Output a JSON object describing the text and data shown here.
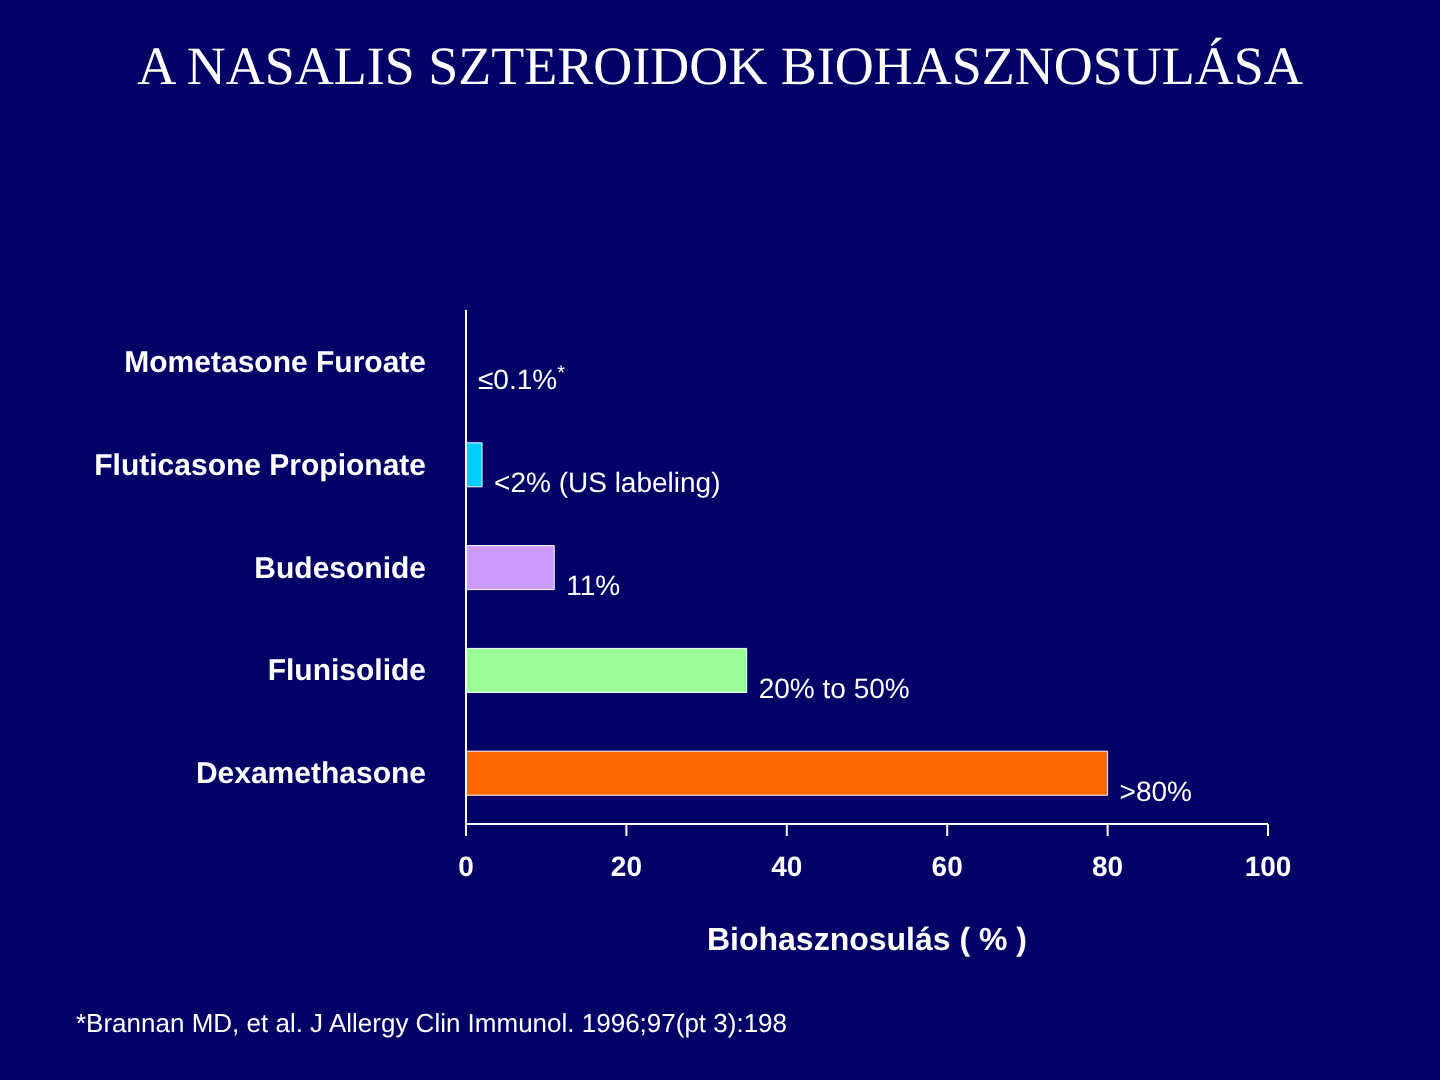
{
  "chart_data": {
    "type": "bar",
    "orientation": "horizontal",
    "title": "A NASALIS SZTEROIDOK BIOHASZNOSULÁSA",
    "categories": [
      "Mometasone Furoate",
      "Fluticasone Propionate",
      "Budesonide",
      "Flunisolide",
      "Dexamethasone"
    ],
    "values": [
      null,
      2,
      11,
      35,
      80
    ],
    "colors": [
      "#00ccff",
      "#00ccff",
      "#cc99ff",
      "#99ff99",
      "#ff6600"
    ],
    "xlim": [
      0,
      100
    ],
    "xticks": [
      0,
      20,
      40,
      60,
      80,
      100
    ],
    "xlabel": "Biohasznosulás ( % )",
    "annotations": [
      "≤0.1%$^{*}$",
      {
        "text": "<2% (US labeling)",
        "x": 2,
        "y": "Fluticasone Propionate"
      },
      {
        "text": "11%",
        "x": 11,
        "y": "Budesonide"
      },
      {
        "text": "20% to 50%",
        "x": 35,
        "y": "Flunisolide"
      },
      {
        "text": ">80%",
        "x": 80,
        "y": "Dexamethasone"
      },
      "*Brannan MD, et al. J Allergy Clin Immunol. 1996;97(pt 3):198"
    ],
    "grid": false,
    "legend": false
  }
}
